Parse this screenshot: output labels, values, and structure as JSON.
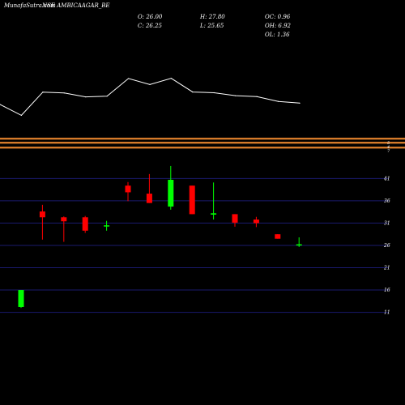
{
  "header": {
    "watermark": "MunafaSutra.com",
    "title": "NSE AMBICAAGAR_BE",
    "open": "O: 26.00",
    "high": "H: 27.80",
    "oc": "OC: 0.96",
    "close": "C: 26.25",
    "low": "L: 25.65",
    "oh": "OH: 6.92",
    "ol": "OL: 1.36"
  },
  "colors": {
    "up": "#00ff00",
    "down": "#ff0000",
    "grid": "#1a1a6e",
    "band": "#d47a2a",
    "line": "#ffffff"
  },
  "chart_data": {
    "type": "candlestick",
    "y_ticks": [
      11,
      16,
      21,
      26,
      31,
      36,
      41
    ],
    "ylim": [
      10.2,
      45.6
    ],
    "top_band_tick_labels": [
      "5",
      "4",
      "7"
    ],
    "candles": [
      {
        "o": 12.2,
        "h": 16.0,
        "l": 12.0,
        "c": 16.0
      },
      {
        "o": 33.6,
        "h": 35.1,
        "l": 27.3,
        "c": 32.3
      },
      {
        "o": 32.3,
        "h": 32.5,
        "l": 26.8,
        "c": 31.4
      },
      {
        "o": 32.3,
        "h": 32.6,
        "l": 28.8,
        "c": 29.3
      },
      {
        "o": 30.3,
        "h": 31.5,
        "l": 29.3,
        "c": 30.5
      },
      {
        "o": 39.4,
        "h": 40.2,
        "l": 35.9,
        "c": 37.9
      },
      {
        "o": 37.6,
        "h": 42.0,
        "l": 35.5,
        "c": 35.5
      },
      {
        "o": 34.7,
        "h": 43.8,
        "l": 34.0,
        "c": 40.7
      },
      {
        "o": 39.4,
        "h": 39.4,
        "l": 33.0,
        "c": 33.0
      },
      {
        "o": 32.9,
        "h": 40.1,
        "l": 31.8,
        "c": 33.2
      },
      {
        "o": 33.0,
        "h": 33.0,
        "l": 30.2,
        "c": 31.1
      },
      {
        "o": 31.8,
        "h": 32.4,
        "l": 30.1,
        "c": 31.0
      },
      {
        "o": 28.5,
        "h": 28.5,
        "l": 27.5,
        "c": 27.5
      },
      {
        "o": 26.0,
        "h": 27.8,
        "l": 25.65,
        "c": 26.25
      }
    ],
    "line_series": [
      75.8,
      65.7,
      87.2,
      86.4,
      82.8,
      83.5,
      99.8,
      94.2,
      100,
      87.3,
      86.6,
      83.9,
      83.1,
      78.6,
      77.0
    ]
  }
}
